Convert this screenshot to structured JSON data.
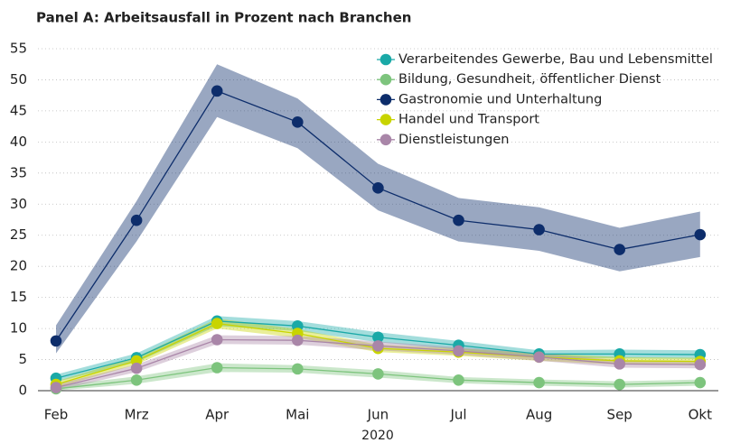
{
  "chart_data": {
    "type": "line",
    "title": "Panel A: Arbeitsausfall in Prozent nach Branchen",
    "xlabel": "2020",
    "categories": [
      "Feb",
      "Mrz",
      "Apr",
      "Mai",
      "Jun",
      "Jul",
      "Aug",
      "Sep",
      "Okt"
    ],
    "ylim": [
      0,
      55
    ],
    "yticks": [
      0,
      5,
      10,
      15,
      20,
      25,
      30,
      35,
      40,
      45,
      50,
      55
    ],
    "grid": true,
    "legend": "top-right",
    "series": [
      {
        "name": "Verarbeitendes Gewerbe, Bau und Lebensmittel",
        "color": "#1aa9a7",
        "values": [
          2,
          5.3,
          11.2,
          10.4,
          8.6,
          7.3,
          5.9,
          5.9,
          5.8
        ],
        "lower": [
          1.4,
          4.6,
          10.4,
          9.6,
          7.8,
          6.6,
          5.3,
          5.2,
          5.1
        ],
        "upper": [
          2.6,
          6,
          12,
          11.2,
          9.4,
          8,
          6.5,
          6.6,
          6.5
        ]
      },
      {
        "name": "Bildung, Gesundheit, öffentlicher Dienst",
        "color": "#7dc47d",
        "values": [
          0.3,
          1.7,
          3.7,
          3.5,
          2.7,
          1.7,
          1.3,
          1,
          1.3
        ],
        "lower": [
          0,
          1.1,
          3,
          2.9,
          2.1,
          1.2,
          0.8,
          0.5,
          0.8
        ],
        "upper": [
          0.8,
          2.3,
          4.4,
          4.1,
          3.3,
          2.2,
          1.8,
          1.5,
          1.8
        ]
      },
      {
        "name": "Gastronomie und Unterhaltung",
        "color": "#0d2d6b",
        "values": [
          8,
          27.4,
          48.2,
          43.2,
          32.6,
          27.4,
          25.9,
          22.7,
          25.1
        ],
        "lower": [
          6,
          24,
          44,
          39,
          29,
          24,
          22.5,
          19.2,
          21.5
        ],
        "upper": [
          10.5,
          30.5,
          52.5,
          47,
          36.5,
          31,
          29.5,
          26.2,
          28.8
        ]
      },
      {
        "name": "Handel und Transport",
        "color": "#c8d400",
        "values": [
          1,
          4.8,
          10.8,
          9.2,
          6.8,
          6.2,
          5.4,
          4.8,
          4.7
        ],
        "lower": [
          0.5,
          4.2,
          10,
          8.5,
          6.2,
          5.6,
          4.8,
          4.2,
          4.1
        ],
        "upper": [
          1.5,
          5.4,
          11.6,
          9.9,
          7.4,
          6.8,
          6,
          5.4,
          5.3
        ]
      },
      {
        "name": "Dienstleistungen",
        "color": "#a986a8",
        "values": [
          0.5,
          3.6,
          8.2,
          8.1,
          7.2,
          6.4,
          5.4,
          4.3,
          4.2
        ],
        "lower": [
          0,
          3,
          7.5,
          7.4,
          6.5,
          5.8,
          4.8,
          3.7,
          3.6
        ],
        "upper": [
          1,
          4.2,
          8.9,
          8.8,
          7.9,
          7,
          6,
          4.9,
          4.8
        ]
      }
    ]
  }
}
